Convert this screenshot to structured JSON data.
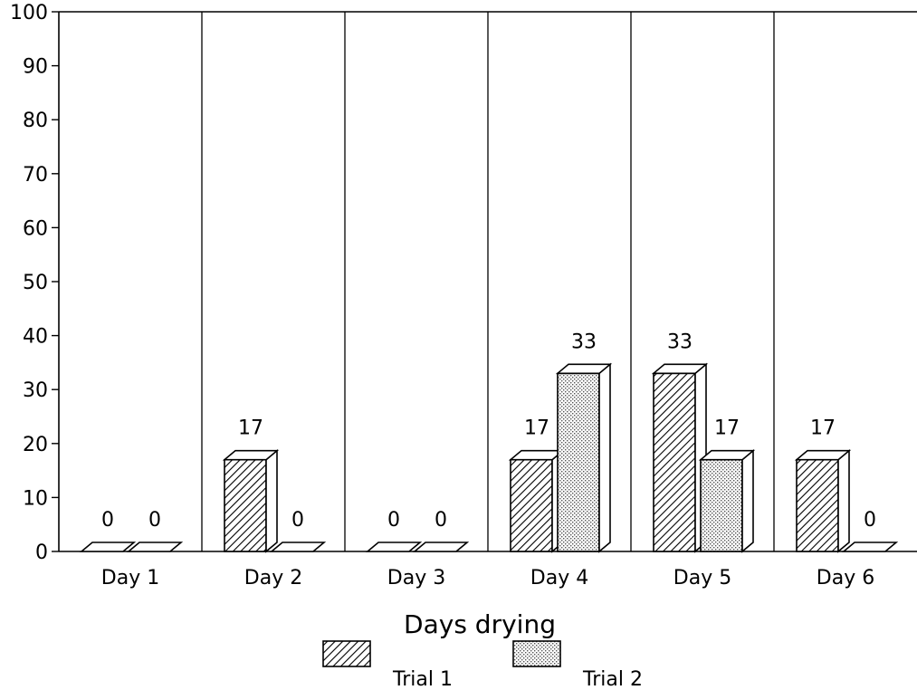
{
  "chart_data": {
    "type": "bar",
    "title": "",
    "xlabel": "Days drying",
    "ylabel": "",
    "ylim": [
      0,
      100
    ],
    "yticks": [
      0,
      10,
      20,
      30,
      40,
      50,
      60,
      70,
      80,
      90,
      100
    ],
    "categories": [
      "Day 1",
      "Day 2",
      "Day 3",
      "Day 4",
      "Day 5",
      "Day 6"
    ],
    "series": [
      {
        "name": "Trial 1",
        "values": [
          0,
          17,
          0,
          17,
          33,
          17
        ],
        "pattern": "diagonal-hatch"
      },
      {
        "name": "Trial 2",
        "values": [
          0,
          0,
          0,
          33,
          17,
          0
        ],
        "pattern": "dots"
      }
    ],
    "data_labels": true,
    "bars_3d": true,
    "category_dividers": true,
    "legend_position": "bottom-center",
    "colors": {
      "ink": "#000000",
      "background": "#ffffff",
      "dots": "#777777"
    }
  }
}
